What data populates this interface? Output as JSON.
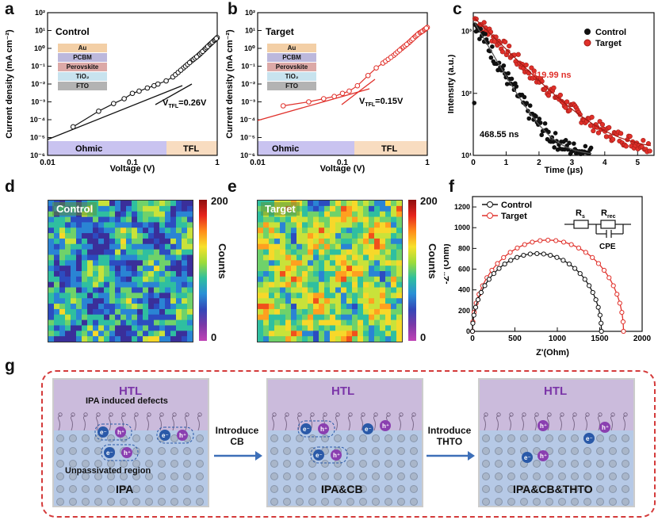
{
  "letters": {
    "a": "a",
    "b": "b",
    "c": "c",
    "d": "d",
    "e": "e",
    "f": "f",
    "g": "g"
  },
  "panel_a": {
    "title": "Control",
    "ylabel": "Current density (mA cm⁻²)",
    "xlabel": "Voltage (V)",
    "vtfl_prefix": "V",
    "vtfl_sub": "TFL",
    "vtfl_value": "=0.26V",
    "region_left": "Ohmic",
    "region_right": "TFL",
    "stack": [
      "Au",
      "PCBM",
      "Perovskite",
      "TiO₂",
      "FTO"
    ],
    "yticks": [
      "10²",
      "10¹",
      "10⁰",
      "10⁻¹",
      "10⁻²",
      "10⁻³",
      "10⁻⁴",
      "10⁻⁵",
      "10⁻⁶"
    ],
    "xticks": [
      "0.01",
      "0.1",
      "1"
    ]
  },
  "panel_b": {
    "title": "Target",
    "ylabel": "Current density (mA cm⁻²)",
    "xlabel": "Voltage (V)",
    "vtfl_prefix": "V",
    "vtfl_sub": "TFL",
    "vtfl_value": "=0.15V",
    "region_left": "Ohmic",
    "region_right": "TFL",
    "stack": [
      "Au",
      "PCBM",
      "Perovskite",
      "TiO₂",
      "FTO"
    ],
    "yticks": [
      "10²",
      "10¹",
      "10⁰",
      "10⁻¹",
      "10⁻²",
      "10⁻³",
      "10⁻⁴",
      "10⁻⁵",
      "10⁻⁶"
    ],
    "xticks": [
      "0.01",
      "0.1",
      "1"
    ]
  },
  "panel_c": {
    "ylabel": "Intensity (a.u.)",
    "xlabel": "Time (μs)",
    "legend": [
      "Control",
      "Target"
    ],
    "ann_target": "819.99 ns",
    "ann_control": "468.55 ns",
    "yticks": [
      "10³",
      "10²",
      "10¹"
    ],
    "xticks": [
      "0",
      "1",
      "2",
      "3",
      "4",
      "5"
    ]
  },
  "panel_d": {
    "label": "Control",
    "cbar_max": "200",
    "cbar_min": "0",
    "cbar_title": "Counts"
  },
  "panel_e": {
    "label": "Target",
    "cbar_max": "200",
    "cbar_min": "0",
    "cbar_title": "Counts"
  },
  "panel_f": {
    "ylabel": "-Z'' (Ohm)",
    "xlabel": "Z'(Ohm)",
    "legend": [
      "Control",
      "Target"
    ],
    "circuit": {
      "rs": "R",
      "rs_sub": "s",
      "rrec": "R",
      "rrec_sub": "rec",
      "cpe": "CPE"
    },
    "yticks": [
      "1200",
      "1000",
      "800",
      "600",
      "400",
      "200",
      "0"
    ],
    "xticks": [
      "0",
      "500",
      "1000",
      "1500",
      "2000"
    ]
  },
  "panel_g": {
    "stages": [
      {
        "htl": "HTL",
        "caption": "IPA",
        "note_top": "IPA induced defects",
        "note_bottom": "Unpassivated region"
      },
      {
        "htl": "HTL",
        "caption": "IPA&CB"
      },
      {
        "htl": "HTL",
        "caption": "IPA&CB&THTO"
      }
    ],
    "arrows": [
      {
        "line1": "Introduce",
        "line2": "CB"
      },
      {
        "line1": "Introduce",
        "line2": "THTO"
      }
    ],
    "electron": "e⁻",
    "hole": "h⁺"
  },
  "colors": {
    "control": "#111111",
    "target": "#e0302a",
    "ohmic": "#c9c3f0",
    "tfl": "#f8dcc0",
    "htl": "#c8b6da",
    "perov": "#b8cbe8",
    "purple": "#8a3fb0",
    "blue": "#2a59a8",
    "dash": "#d43a3a"
  },
  "chart_data": [
    {
      "type": "scatter",
      "title": "Control",
      "xlabel": "Voltage (V)",
      "ylabel": "Current density (mA cm⁻²)",
      "xscale": "log",
      "yscale": "log",
      "xlim": [
        0.01,
        1
      ],
      "ylim": [
        1e-06,
        100
      ],
      "series": [
        {
          "name": "Control",
          "x": [
            0.02,
            0.04,
            0.06,
            0.08,
            0.1,
            0.12,
            0.15,
            0.18,
            0.2,
            0.25,
            0.3,
            0.4,
            0.5,
            0.6,
            0.7,
            0.8,
            0.9,
            1.0
          ],
          "y": [
            4e-05,
            0.0003,
            0.0008,
            0.0015,
            0.003,
            0.004,
            0.006,
            0.008,
            0.01,
            0.015,
            0.025,
            0.08,
            0.2,
            0.4,
            0.8,
            1.5,
            2.5,
            4
          ]
        }
      ],
      "annotations": [
        "VTFL=0.26V"
      ]
    },
    {
      "type": "scatter",
      "title": "Target",
      "xlabel": "Voltage (V)",
      "ylabel": "Current density (mA cm⁻²)",
      "xscale": "log",
      "yscale": "log",
      "xlim": [
        0.01,
        1
      ],
      "ylim": [
        1e-06,
        100
      ],
      "series": [
        {
          "name": "Target",
          "x": [
            0.02,
            0.04,
            0.06,
            0.08,
            0.1,
            0.12,
            0.15,
            0.2,
            0.25,
            0.3,
            0.4,
            0.5,
            0.6,
            0.7,
            0.8,
            0.9,
            1.0
          ],
          "y": [
            0.0006,
            0.001,
            0.0015,
            0.002,
            0.003,
            0.004,
            0.008,
            0.03,
            0.08,
            0.15,
            0.4,
            1,
            2,
            4,
            7,
            10,
            15
          ]
        }
      ],
      "annotations": [
        "VTFL=0.15V"
      ]
    },
    {
      "type": "scatter",
      "xlabel": "Time (μs)",
      "ylabel": "Intensity (a.u.)",
      "yscale": "log",
      "xlim": [
        0,
        5.5
      ],
      "ylim": [
        10,
        2000
      ],
      "series": [
        {
          "name": "Control",
          "tau_ns": 468.55
        },
        {
          "name": "Target",
          "tau_ns": 819.99
        }
      ]
    },
    {
      "type": "scatter",
      "xlabel": "Z'(Ohm)",
      "ylabel": "-Z'' (Ohm)",
      "xlim": [
        0,
        2000
      ],
      "ylim": [
        0,
        1300
      ],
      "series": [
        {
          "name": "Control",
          "x": [
            0,
            1520
          ],
          "peak": [
            760,
            750
          ]
        },
        {
          "name": "Target",
          "x": [
            0,
            1780
          ],
          "peak": [
            890,
            880
          ]
        }
      ]
    }
  ]
}
